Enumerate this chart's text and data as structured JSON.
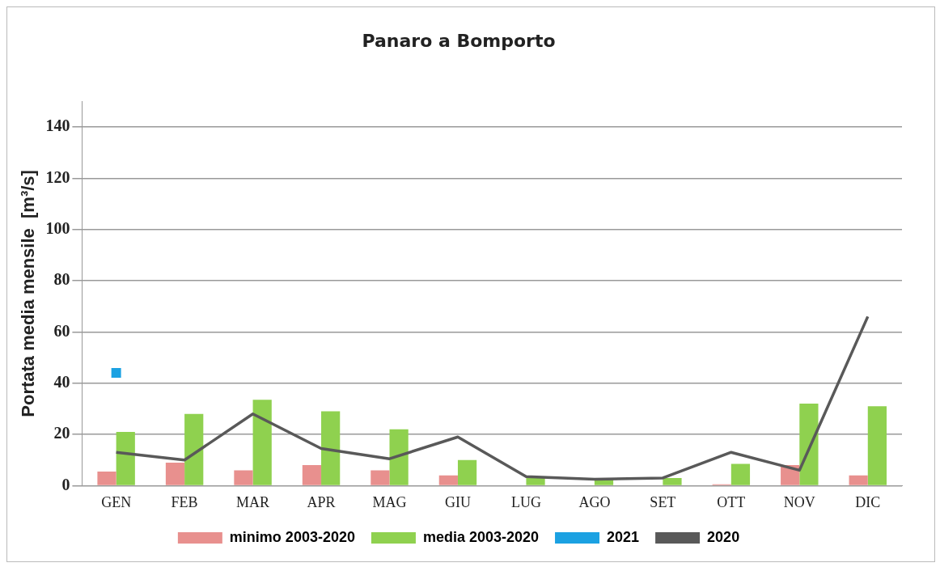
{
  "chart_data": {
    "type": "bar",
    "title": "Panaro a Bomporto",
    "ylabel": "Portata media mensile  [m³/s]",
    "categories": [
      "GEN",
      "FEB",
      "MAR",
      "APR",
      "MAG",
      "GIU",
      "LUG",
      "AGO",
      "SET",
      "OTT",
      "NOV",
      "DIC"
    ],
    "series": [
      {
        "name": "minimo 2003-2020",
        "color": "#e8908e",
        "values": [
          5.5,
          9,
          6,
          8,
          6,
          4,
          0,
          0,
          0,
          0.5,
          8,
          4
        ]
      },
      {
        "name": "media 2003-2020",
        "color": "#8fd14f",
        "values": [
          21,
          28,
          33.5,
          29,
          22,
          10,
          3,
          2.5,
          3,
          8.5,
          32,
          31
        ]
      },
      {
        "name": "2021",
        "type": "line",
        "color": "#1ba1e2",
        "marker": "square",
        "values": [
          44,
          null,
          null,
          null,
          null,
          null,
          null,
          null,
          null,
          null,
          null,
          null
        ]
      },
      {
        "name": "2020",
        "type": "line",
        "color": "#595959",
        "marker": "none",
        "values": [
          13,
          10,
          28,
          14.5,
          10.5,
          19,
          3.5,
          2.5,
          3,
          13,
          6,
          66
        ]
      }
    ],
    "ylim": [
      0,
      150
    ],
    "yticks": [
      0,
      20,
      40,
      60,
      80,
      100,
      120,
      140
    ],
    "grid": "y",
    "legend": "bottom"
  }
}
